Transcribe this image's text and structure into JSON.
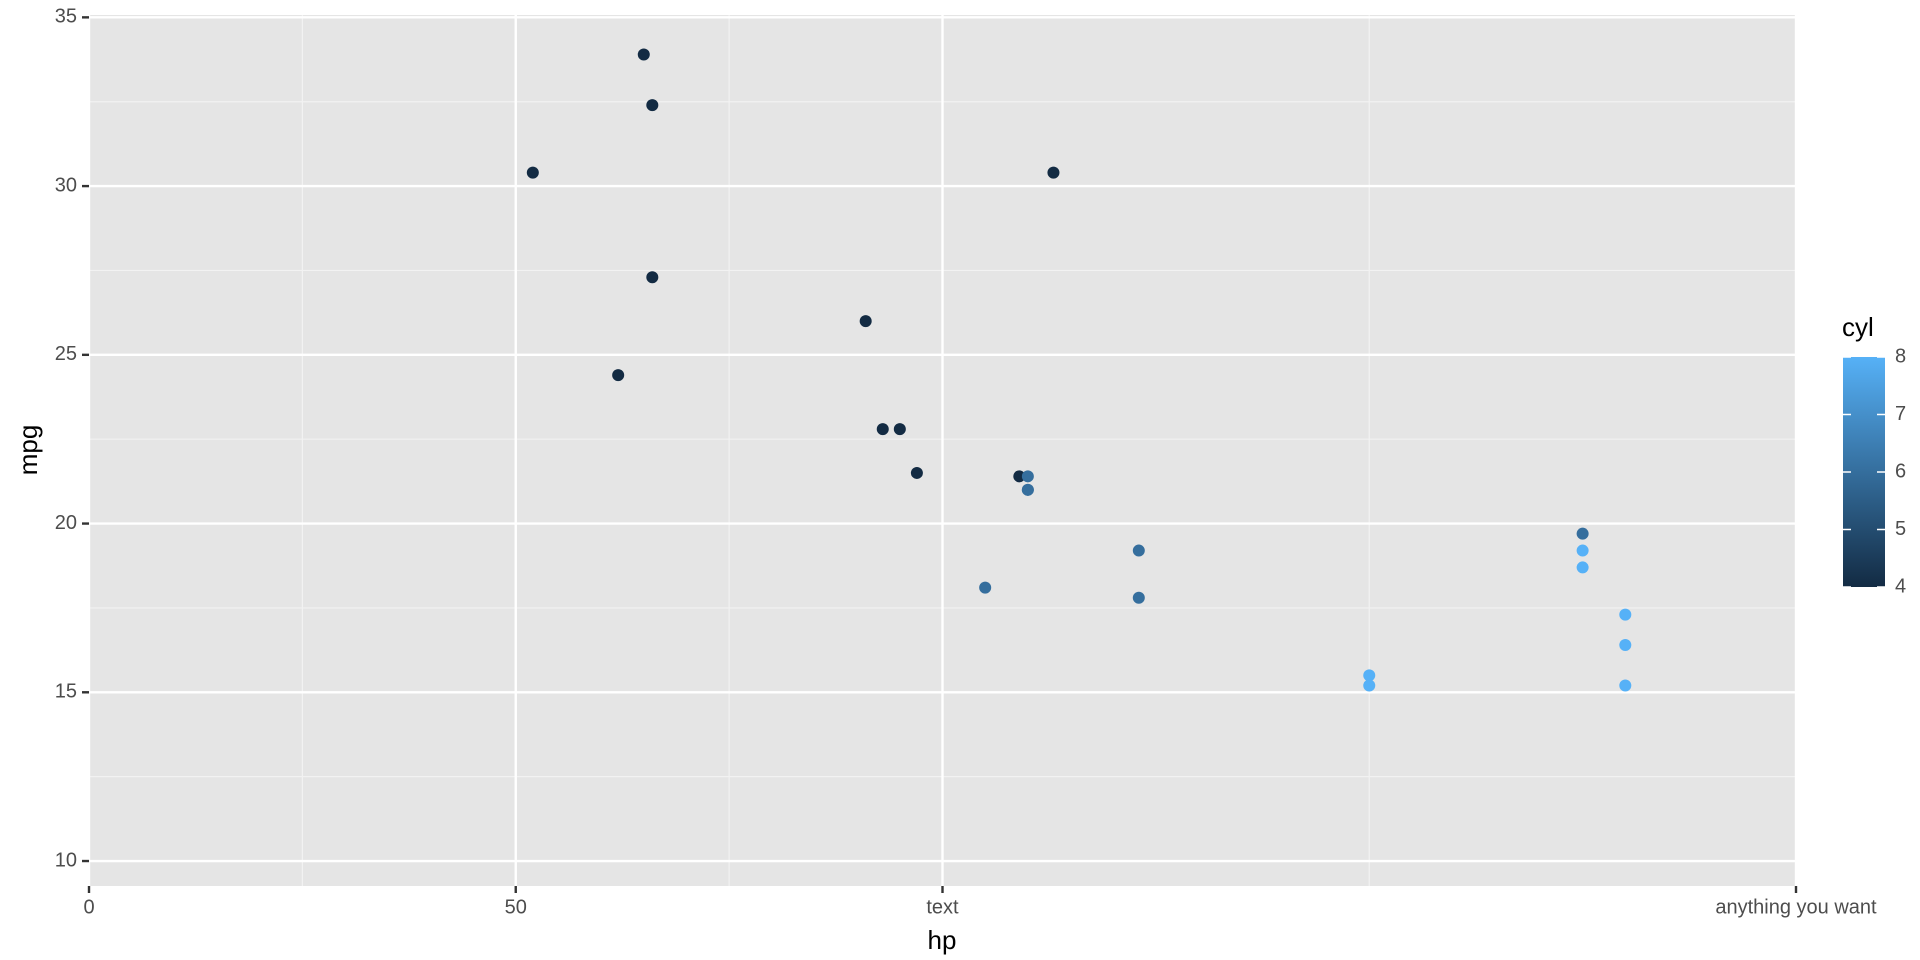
{
  "chart_data": {
    "type": "scatter",
    "x_label": "hp",
    "y_label": "mpg",
    "xlim": [
      0,
      200
    ],
    "ylim": [
      9.26,
      35.07
    ],
    "xticks": [
      0,
      50,
      {
        "value": 100,
        "label": "text"
      },
      {
        "value": 200,
        "label": "anything you want"
      }
    ],
    "yticks": [
      10,
      15,
      20,
      25,
      30,
      35
    ],
    "grid": true,
    "series": [
      {
        "name": "cyl",
        "x": [
          52,
          65,
          66,
          66,
          62,
          91,
          93,
          95,
          97,
          105,
          109,
          110,
          110,
          110,
          113,
          123,
          123,
          150,
          150,
          175,
          175,
          175,
          180,
          180,
          180
        ],
        "values": [
          30.4,
          33.9,
          32.4,
          27.3,
          24.4,
          26.0,
          22.8,
          22.8,
          21.5,
          18.1,
          21.4,
          21.0,
          21.0,
          21.4,
          30.4,
          19.2,
          17.8,
          15.5,
          15.2,
          19.7,
          18.7,
          19.2,
          16.4,
          17.3,
          15.2
        ],
        "color_values": [
          4,
          4,
          4,
          4,
          4,
          4,
          4,
          4,
          4,
          6,
          4,
          6,
          6,
          6,
          4,
          6,
          6,
          8,
          8,
          6,
          8,
          8,
          8,
          8,
          8
        ]
      }
    ],
    "color_scale": {
      "title": "cyl",
      "lim": [
        4,
        8
      ],
      "ticks": [
        4,
        5,
        6,
        7,
        8
      ],
      "colors": [
        "#132B43",
        "#56B1F7"
      ]
    }
  }
}
